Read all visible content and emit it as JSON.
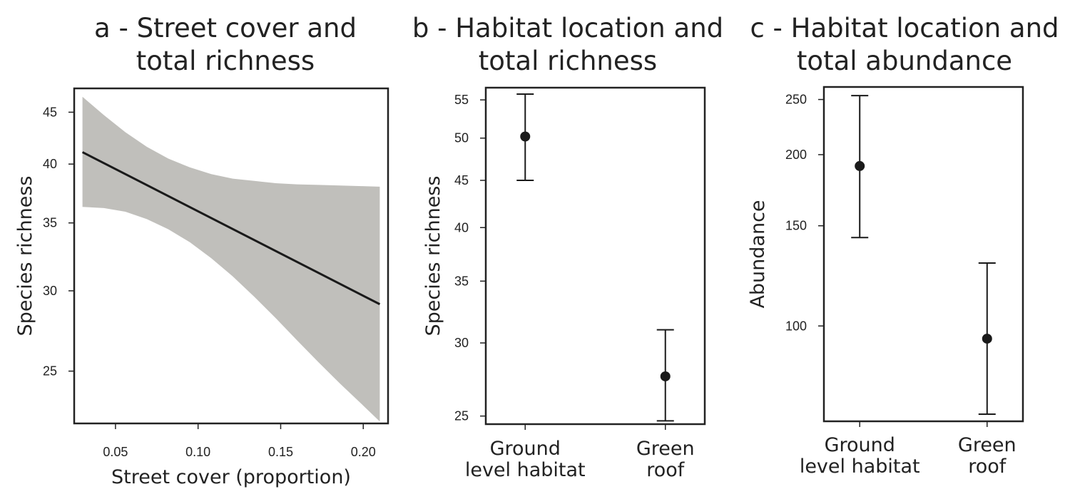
{
  "chart_data": [
    {
      "type": "line",
      "title_lines": [
        "a - Street cover and",
        "total richness"
      ],
      "xlabel": "Street cover (proportion)",
      "ylabel": "Species richness",
      "y_scale": "log",
      "xlim": [
        0.025,
        0.215
      ],
      "ylim": [
        22.2,
        47.5
      ],
      "x_ticks": [
        0.05,
        0.1,
        0.15,
        0.2
      ],
      "x_tick_labels": [
        "0.05",
        "0.10",
        "0.15",
        "0.20"
      ],
      "y_ticks": [
        25,
        30,
        35,
        40,
        45
      ],
      "y_tick_labels": [
        "25",
        "30",
        "35",
        "40",
        "45"
      ],
      "series": [
        {
          "x": [
            0.03,
            0.21
          ],
          "y": [
            41.1,
            29.1
          ],
          "ci_band": {
            "x": [
              0.03,
              0.043,
              0.056,
              0.069,
              0.082,
              0.095,
              0.108,
              0.121,
              0.134,
              0.147,
              0.16,
              0.173,
              0.186,
              0.199,
              0.21
            ],
            "upper": [
              46.6,
              44.7,
              43.0,
              41.6,
              40.5,
              39.7,
              39.1,
              38.7,
              38.5,
              38.3,
              38.2,
              38.15,
              38.1,
              38.05,
              38.0
            ],
            "lower": [
              36.3,
              36.2,
              35.9,
              35.3,
              34.5,
              33.5,
              32.3,
              31.0,
              29.6,
              28.2,
              26.8,
              25.5,
              24.3,
              23.2,
              22.3
            ]
          }
        }
      ],
      "band_color": "#c0bfbb",
      "line_color": "#1a1a1a",
      "grid": false
    },
    {
      "type": "scatter",
      "title_lines": [
        "b - Habitat location and",
        "total richness"
      ],
      "xlabel": "",
      "ylabel": "Species richness",
      "y_scale": "log",
      "categories": [
        [
          "Ground",
          "level habitat"
        ],
        [
          "Green",
          "roof"
        ]
      ],
      "ylim": [
        24.5,
        56.7
      ],
      "y_ticks": [
        25,
        30,
        35,
        40,
        45,
        50,
        55
      ],
      "y_tick_labels": [
        "25",
        "30",
        "35",
        "40",
        "45",
        "50",
        "55"
      ],
      "points": [
        {
          "y": 50.2,
          "lower": 45.0,
          "upper": 55.8
        },
        {
          "y": 27.6,
          "lower": 24.7,
          "upper": 31.0
        }
      ],
      "grid": false
    },
    {
      "type": "scatter",
      "title_lines": [
        "c - Habitat location and",
        "total abundance"
      ],
      "xlabel": "",
      "ylabel": "Abundance",
      "y_scale": "log",
      "categories": [
        [
          "Ground",
          "level habitat"
        ],
        [
          "Green",
          "roof"
        ]
      ],
      "ylim": [
        68,
        263
      ],
      "y_ticks": [
        100,
        150,
        200,
        250
      ],
      "y_tick_labels": [
        "100",
        "150",
        "200",
        "250"
      ],
      "points": [
        {
          "y": 191,
          "lower": 143,
          "upper": 254
        },
        {
          "y": 95,
          "lower": 70,
          "upper": 129
        }
      ],
      "grid": false
    }
  ]
}
